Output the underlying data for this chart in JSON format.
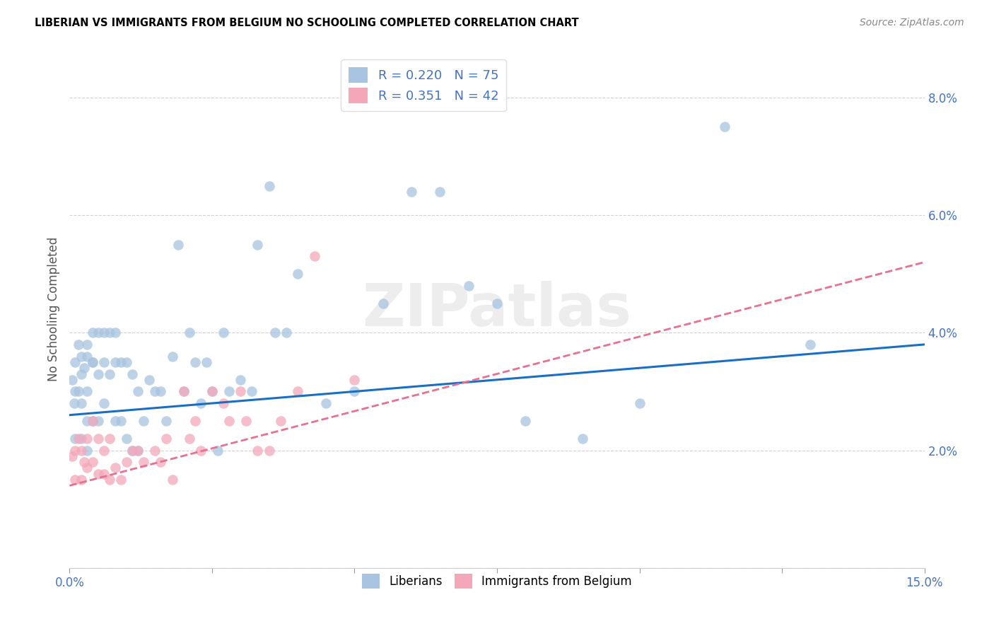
{
  "title": "LIBERIAN VS IMMIGRANTS FROM BELGIUM NO SCHOOLING COMPLETED CORRELATION CHART",
  "source": "Source: ZipAtlas.com",
  "ylabel": "No Schooling Completed",
  "xlim": [
    0.0,
    0.15
  ],
  "ylim": [
    0.0,
    0.088
  ],
  "xticks": [
    0.0,
    0.025,
    0.05,
    0.075,
    0.1,
    0.125,
    0.15
  ],
  "xticklabels_show": [
    "0.0%",
    "",
    "",
    "",
    "",
    "",
    "15.0%"
  ],
  "yticks": [
    0.0,
    0.02,
    0.04,
    0.06,
    0.08
  ],
  "yticklabels": [
    "",
    "2.0%",
    "4.0%",
    "6.0%",
    "8.0%"
  ],
  "liberian_color": "#a8c4e0",
  "belgium_color": "#f4a7b9",
  "liberian_line_color": "#1a6fc4",
  "belgium_line_color": "#e87090",
  "legend_label1": "R = 0.220   N = 75",
  "legend_label2": "R = 0.351   N = 42",
  "watermark": "ZIPatlas",
  "liberian_x": [
    0.0005,
    0.0008,
    0.001,
    0.001,
    0.001,
    0.0015,
    0.0015,
    0.002,
    0.002,
    0.002,
    0.002,
    0.0025,
    0.003,
    0.003,
    0.003,
    0.003,
    0.003,
    0.004,
    0.004,
    0.004,
    0.004,
    0.005,
    0.005,
    0.005,
    0.006,
    0.006,
    0.006,
    0.007,
    0.007,
    0.008,
    0.008,
    0.008,
    0.009,
    0.009,
    0.01,
    0.01,
    0.011,
    0.011,
    0.012,
    0.012,
    0.013,
    0.014,
    0.015,
    0.016,
    0.017,
    0.018,
    0.019,
    0.02,
    0.021,
    0.022,
    0.023,
    0.024,
    0.025,
    0.026,
    0.027,
    0.028,
    0.03,
    0.032,
    0.033,
    0.035,
    0.036,
    0.038,
    0.04,
    0.045,
    0.05,
    0.055,
    0.06,
    0.065,
    0.07,
    0.075,
    0.08,
    0.09,
    0.1,
    0.115,
    0.13
  ],
  "liberian_y": [
    0.032,
    0.028,
    0.035,
    0.03,
    0.022,
    0.038,
    0.03,
    0.036,
    0.033,
    0.028,
    0.022,
    0.034,
    0.038,
    0.036,
    0.03,
    0.025,
    0.02,
    0.04,
    0.035,
    0.025,
    0.035,
    0.04,
    0.033,
    0.025,
    0.04,
    0.035,
    0.028,
    0.04,
    0.033,
    0.04,
    0.035,
    0.025,
    0.035,
    0.025,
    0.035,
    0.022,
    0.033,
    0.02,
    0.03,
    0.02,
    0.025,
    0.032,
    0.03,
    0.03,
    0.025,
    0.036,
    0.055,
    0.03,
    0.04,
    0.035,
    0.028,
    0.035,
    0.03,
    0.02,
    0.04,
    0.03,
    0.032,
    0.03,
    0.055,
    0.065,
    0.04,
    0.04,
    0.05,
    0.028,
    0.03,
    0.045,
    0.064,
    0.064,
    0.048,
    0.045,
    0.025,
    0.022,
    0.028,
    0.075,
    0.038
  ],
  "belgium_x": [
    0.0005,
    0.001,
    0.001,
    0.0015,
    0.002,
    0.002,
    0.0025,
    0.003,
    0.003,
    0.004,
    0.004,
    0.005,
    0.005,
    0.006,
    0.006,
    0.007,
    0.007,
    0.008,
    0.009,
    0.01,
    0.011,
    0.012,
    0.013,
    0.015,
    0.016,
    0.017,
    0.018,
    0.02,
    0.021,
    0.022,
    0.023,
    0.025,
    0.027,
    0.028,
    0.03,
    0.031,
    0.033,
    0.035,
    0.037,
    0.04,
    0.043,
    0.05
  ],
  "belgium_y": [
    0.019,
    0.02,
    0.015,
    0.022,
    0.02,
    0.015,
    0.018,
    0.022,
    0.017,
    0.025,
    0.018,
    0.022,
    0.016,
    0.02,
    0.016,
    0.022,
    0.015,
    0.017,
    0.015,
    0.018,
    0.02,
    0.02,
    0.018,
    0.02,
    0.018,
    0.022,
    0.015,
    0.03,
    0.022,
    0.025,
    0.02,
    0.03,
    0.028,
    0.025,
    0.03,
    0.025,
    0.02,
    0.02,
    0.025,
    0.03,
    0.053,
    0.032
  ],
  "lib_line_x0": 0.0,
  "lib_line_x1": 0.15,
  "lib_line_y0": 0.026,
  "lib_line_y1": 0.038,
  "bel_line_x0": 0.0,
  "bel_line_x1": 0.15,
  "bel_line_y0": 0.014,
  "bel_line_y1": 0.052
}
